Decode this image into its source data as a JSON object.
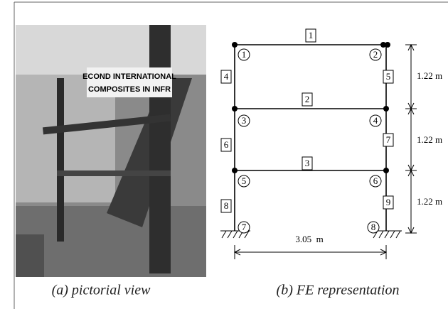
{
  "photo": {
    "banner": [
      "ECOND INTERNATIONAL",
      "COMPOSITES IN INFR"
    ]
  },
  "nodes": [
    "1",
    "2",
    "3",
    "4",
    "5",
    "6",
    "7",
    "8"
  ],
  "elements": [
    "1",
    "2",
    "3",
    "4",
    "5",
    "6",
    "7",
    "8",
    "9"
  ],
  "dimensions": {
    "story_heights": [
      "1.22 m",
      "1.22 m",
      "1.22 m"
    ],
    "span": "3.05  m"
  },
  "captions": [
    "(a) pictorial view",
    "(b) FE representation"
  ]
}
